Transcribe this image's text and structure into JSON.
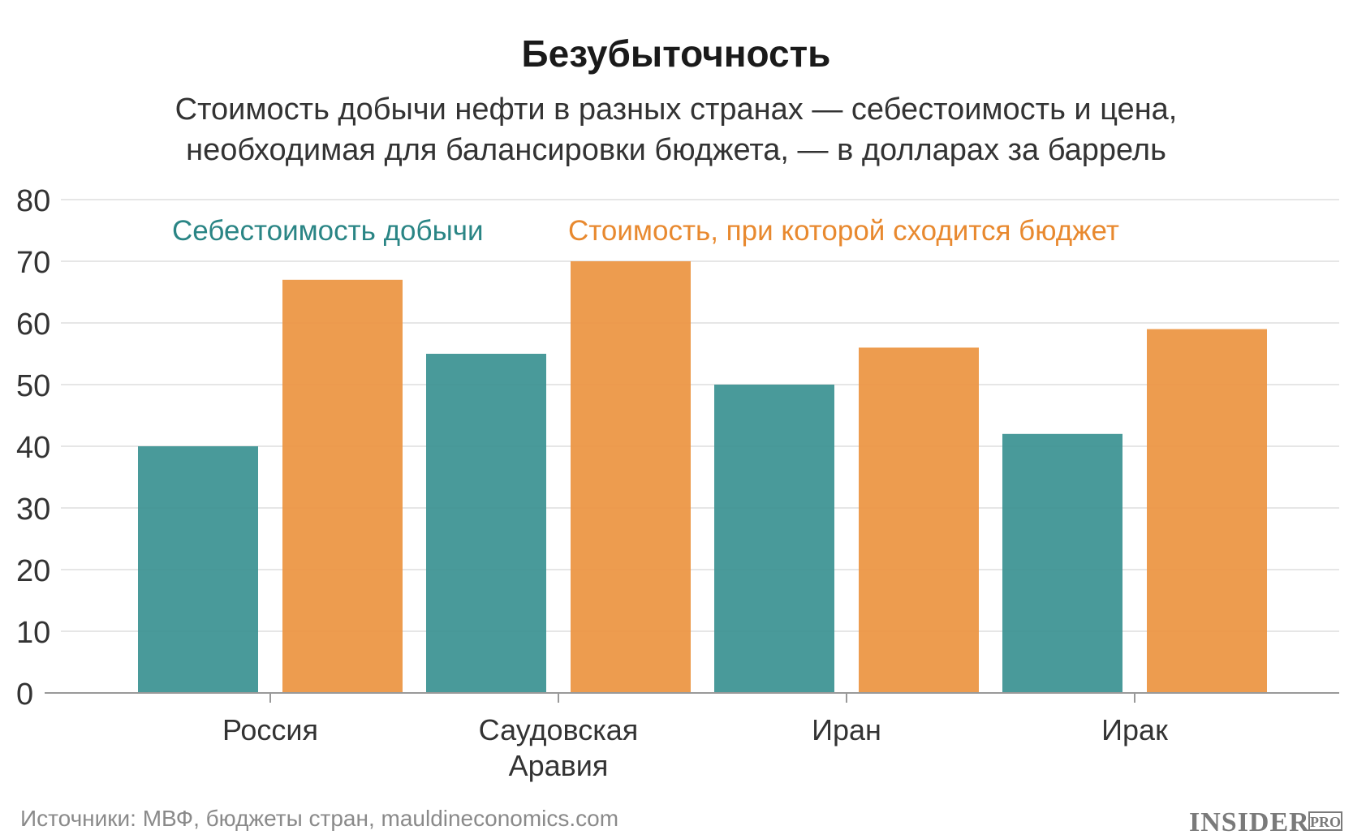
{
  "chart_data": {
    "type": "bar",
    "title": "Безубыточность",
    "subtitle": [
      "Стоимость добычи нефти в разных странах — себестоимость и цена,",
      "необходимая для балансировки бюджета, — в долларах за баррель"
    ],
    "categories": [
      [
        "Россия"
      ],
      [
        "Саудовская",
        "Аравия"
      ],
      [
        "Иран"
      ],
      [
        "Ирак"
      ]
    ],
    "series": [
      {
        "name": "Себестоимость добычи",
        "color": "#3a9191",
        "values": [
          40,
          55,
          50,
          42
        ]
      },
      {
        "name": "Стоимость, при которой сходится бюджет",
        "color": "#ec9440",
        "values": [
          67,
          70,
          56,
          59
        ]
      }
    ],
    "yticks": [
      0,
      10,
      20,
      30,
      40,
      50,
      60,
      70,
      80
    ],
    "ylim": [
      0,
      80
    ],
    "grid": true,
    "legend_position": "top"
  },
  "footer": {
    "source": "Источники: МВФ, бюджеты стран, mauldineconomics.com",
    "logo": "INSIDER",
    "logo_suffix": "PRO"
  }
}
